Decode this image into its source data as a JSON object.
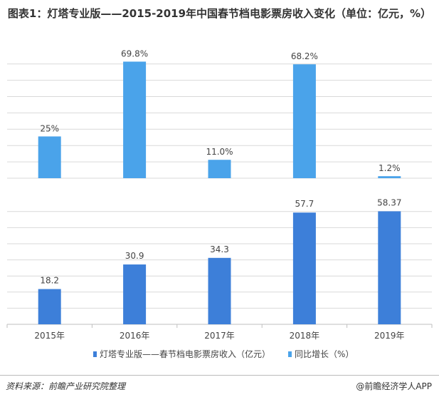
{
  "title": "图表1：灯塔专业版——2015-2019年中国春节档电影票房收入变化（单位：亿元，%）",
  "footer": {
    "source": "资料来源：前瞻产业研究院整理",
    "brand": "@前瞻经济学人APP"
  },
  "colors": {
    "growth": "#4aa3ea",
    "revenue": "#3d7fd9",
    "grid": "#d9d9d9",
    "axis": "#bfbfbf"
  },
  "chart_data": {
    "type": "bar",
    "categories": [
      "2015年",
      "2016年",
      "2017年",
      "2018年",
      "2019年"
    ],
    "series": [
      {
        "name": "灯塔专业版——春节档电影票房收入（亿元）",
        "values": [
          18.2,
          30.9,
          34.3,
          57.7,
          58.37
        ],
        "labels": [
          "18.2",
          "30.9",
          "34.3",
          "57.7",
          "58.37"
        ],
        "ylim": [
          0,
          60
        ]
      },
      {
        "name": "同比增长（%）",
        "values": [
          25,
          69.8,
          11.0,
          68.2,
          1.2
        ],
        "labels": [
          "25%",
          "69.8%",
          "11.0%",
          "68.2%",
          "1.2%"
        ],
        "ylim": [
          0,
          70
        ]
      }
    ],
    "legend": "bottom-center",
    "grid": true
  }
}
